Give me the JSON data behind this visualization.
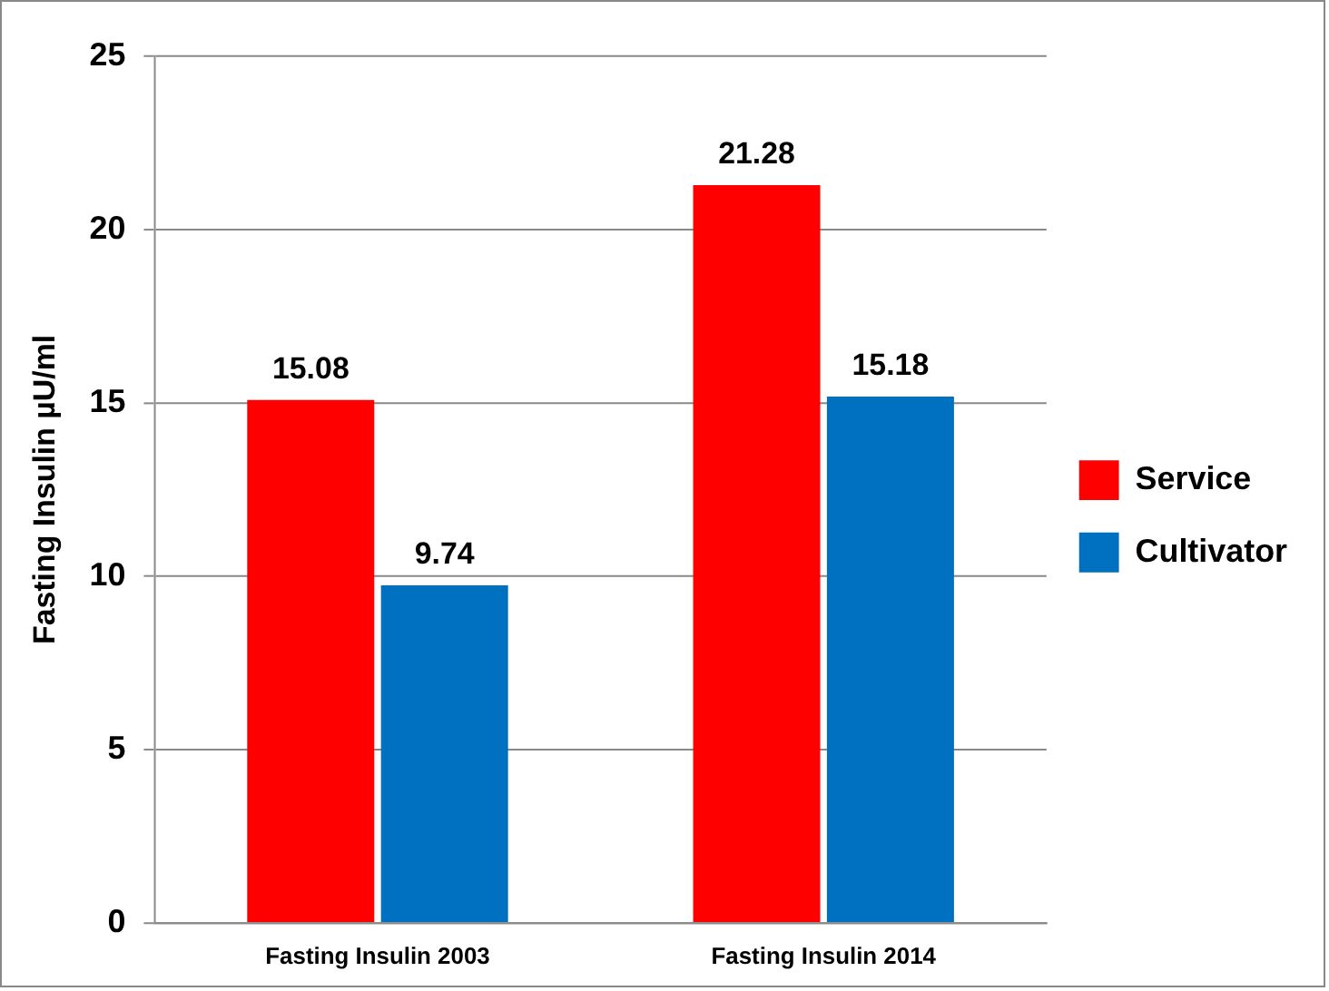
{
  "chart_data": {
    "type": "bar",
    "ylabel": "Fasting Insulin µU/ml",
    "categories": [
      "Fasting Insulin 2003",
      "Fasting Insulin 2014"
    ],
    "series": [
      {
        "name": "Service",
        "color": "#ff0000",
        "values": [
          15.08,
          21.28
        ]
      },
      {
        "name": "Cultivator",
        "color": "#0070c0",
        "values": [
          9.74,
          15.18
        ]
      }
    ],
    "ylim": [
      0,
      25
    ],
    "yticks": [
      0,
      5,
      10,
      15,
      20,
      25
    ],
    "grid": "y",
    "legend": "right",
    "data_labels": true
  }
}
